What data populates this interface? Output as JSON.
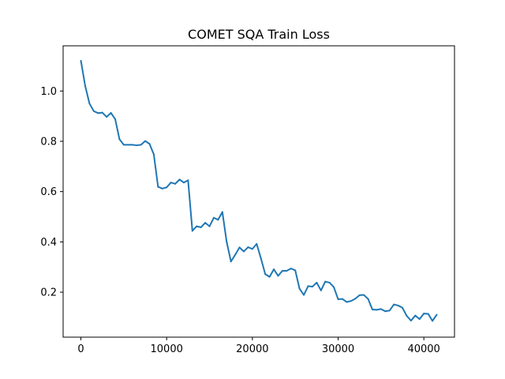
{
  "chart_data": {
    "type": "line",
    "title": "COMET SQA Train Loss",
    "xlabel": "",
    "ylabel": "",
    "xlim": [
      -2075,
      43575
    ],
    "ylim": [
      0.0212,
      1.1798
    ],
    "x_ticks": [
      0,
      10000,
      20000,
      30000,
      40000
    ],
    "x_tick_labels": [
      "0",
      "10000",
      "20000",
      "30000",
      "40000"
    ],
    "y_ticks": [
      0.2,
      0.4,
      0.6,
      0.8,
      1.0
    ],
    "y_tick_labels": [
      "0.2",
      "0.4",
      "0.6",
      "0.8",
      "1.0"
    ],
    "grid": false,
    "color": "#1f77b4",
    "series": [
      {
        "x": [
          0,
          500,
          1000,
          1500,
          2000,
          2500,
          3000,
          3500,
          4000,
          4500,
          5000,
          5500,
          6000,
          6500,
          7000,
          7500,
          8000,
          8500,
          9000,
          9500,
          10000,
          10500,
          11000,
          11500,
          12000,
          12500,
          13000,
          13500,
          14000,
          14500,
          15000,
          15500,
          16000,
          16500,
          17000,
          17500,
          18000,
          18500,
          19000,
          19500,
          20000,
          20500,
          21000,
          21500,
          22000,
          22500,
          23000,
          23500,
          24000,
          24500,
          25000,
          25500,
          26000,
          26500,
          27000,
          27500,
          28000,
          28500,
          29000,
          29500,
          30000,
          30500,
          31000,
          31500,
          32000,
          32500,
          33000,
          33500,
          34000,
          34500,
          35000,
          35500,
          36000,
          36500,
          37000,
          37500,
          38000,
          38500,
          39000,
          39500,
          40000,
          40500,
          41000,
          41500
        ],
        "y": [
          1.12,
          1.02,
          0.95,
          0.92,
          0.912,
          0.914,
          0.897,
          0.913,
          0.888,
          0.808,
          0.786,
          0.786,
          0.786,
          0.784,
          0.786,
          0.801,
          0.79,
          0.748,
          0.619,
          0.612,
          0.617,
          0.636,
          0.631,
          0.648,
          0.636,
          0.645,
          0.444,
          0.462,
          0.458,
          0.476,
          0.462,
          0.496,
          0.488,
          0.519,
          0.4,
          0.322,
          0.349,
          0.378,
          0.362,
          0.379,
          0.372,
          0.392,
          0.334,
          0.272,
          0.261,
          0.291,
          0.265,
          0.285,
          0.285,
          0.294,
          0.287,
          0.214,
          0.189,
          0.224,
          0.222,
          0.238,
          0.207,
          0.242,
          0.238,
          0.22,
          0.172,
          0.173,
          0.161,
          0.165,
          0.174,
          0.188,
          0.189,
          0.173,
          0.131,
          0.13,
          0.133,
          0.124,
          0.127,
          0.151,
          0.147,
          0.138,
          0.106,
          0.087,
          0.107,
          0.093,
          0.115,
          0.114,
          0.086,
          0.11
        ]
      }
    ]
  }
}
